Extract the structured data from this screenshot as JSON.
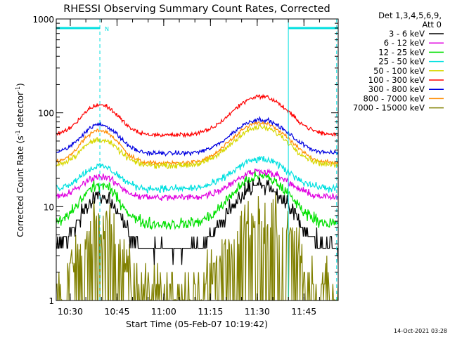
{
  "chart_data": {
    "type": "line",
    "title": "RHESSI Observing Summary Count Rates, Corrected",
    "xlabel": "Start Time (05-Feb-07 10:19:42)",
    "ylabel_main": "Corrected Count Rate (s",
    "ylabel_sup1": "-1",
    "ylabel_mid": " detector",
    "ylabel_sup2": "-1",
    "ylabel_end": ")",
    "y_scale": "log",
    "ylim": [
      1,
      1000
    ],
    "xlim_minutes": [
      25.5,
      56.0
    ],
    "x_ticks": [
      {
        "minute": 30,
        "label": "10:30"
      },
      {
        "minute": 45,
        "label": "10:45"
      },
      {
        "minute": 60,
        "label": "11:00"
      },
      {
        "minute": 75,
        "label": "11:15"
      },
      {
        "minute": 90,
        "label": "11:30"
      },
      {
        "minute": 105,
        "label": "11:45"
      }
    ],
    "y_ticks": [
      {
        "value": 1,
        "label": "1"
      },
      {
        "value": 10,
        "label": "10"
      },
      {
        "value": 100,
        "label": "100"
      },
      {
        "value": 1000,
        "label": "1000"
      }
    ],
    "legend_header": [
      "Det 1,3,4,5,6,9,",
      "Att 0"
    ],
    "legend_position": "top-right",
    "time_start_minute": 25.5,
    "time_end_minute": 116.0,
    "peak_minutes": [
      39.5,
      91.0
    ],
    "series": [
      {
        "name": "3 - 6 keV",
        "color": "#000000",
        "base": 3.5,
        "peaks": [
          13,
          17
        ],
        "noise": 0.12,
        "step": true
      },
      {
        "name": "6 - 12 keV",
        "color": "#e000e0",
        "base": 12.5,
        "peaks": [
          21,
          24
        ],
        "noise": 0.05
      },
      {
        "name": "12 - 25 keV",
        "color": "#00e000",
        "base": 6.5,
        "peaks": [
          17,
          21
        ],
        "noise": 0.08
      },
      {
        "name": "25 - 50 keV",
        "color": "#00e0e0",
        "base": 15.5,
        "peaks": [
          27,
          32
        ],
        "noise": 0.05
      },
      {
        "name": "50 - 100 keV",
        "color": "#d8d800",
        "base": 27.5,
        "peaks": [
          52,
          70
        ],
        "noise": 0.04
      },
      {
        "name": "100 - 300 keV",
        "color": "#ff0000",
        "base": 58,
        "peaks": [
          122,
          150
        ],
        "noise": 0.03
      },
      {
        "name": "300 - 800 keV",
        "color": "#0000e0",
        "base": 37,
        "peaks": [
          75,
          85
        ],
        "noise": 0.03
      },
      {
        "name": "800 - 7000 keV",
        "color": "#ff8c00",
        "base": 29,
        "peaks": [
          65,
          78
        ],
        "noise": 0.03
      },
      {
        "name": "7000 - 15000 keV",
        "color": "#808000",
        "base": 1.4,
        "peaks": [
          6.5,
          8.5
        ],
        "noise": 0.35,
        "step": true
      }
    ],
    "flag_level": 800,
    "flag_segments": [
      [
        25.5,
        39.5
      ],
      [
        100.0,
        116.0
      ]
    ],
    "flag_label": "N",
    "vertical_lines_dashed_minutes": [
      39.5,
      115.5
    ],
    "vertical_lines_solid_minutes": [
      100.0
    ],
    "flag_color": "#00e0e0"
  },
  "footer": {
    "timestamp": "14-Oct-2021 03:28"
  }
}
